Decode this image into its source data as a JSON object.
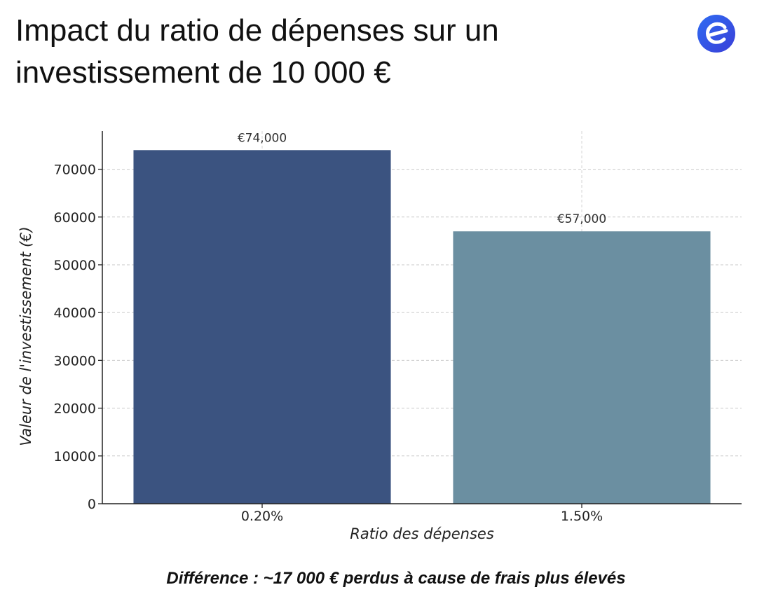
{
  "header": {
    "title": "Impact du ratio de dépenses sur un investissement de 10 000 €",
    "logo_icon": "e-logo-icon",
    "logo_color": "#2e5bea"
  },
  "chart_data": {
    "type": "bar",
    "categories": [
      "0.20%",
      "1.50%"
    ],
    "values": [
      74000,
      57000
    ],
    "data_labels": [
      "€74,000",
      "€57,000"
    ],
    "bar_colors": [
      "#3b5380",
      "#6b8fa1"
    ],
    "xlabel": "Ratio des dépenses",
    "ylabel": "Valeur de l'investissement (€)",
    "ylim": [
      0,
      78000
    ],
    "yticks": [
      0,
      10000,
      20000,
      30000,
      40000,
      50000,
      60000,
      70000
    ],
    "ytick_labels": [
      "0",
      "10000",
      "20000",
      "30000",
      "40000",
      "50000",
      "60000",
      "70000"
    ],
    "grid": true
  },
  "caption": "Différence : ~17 000 € perdus à cause de frais plus élevés"
}
